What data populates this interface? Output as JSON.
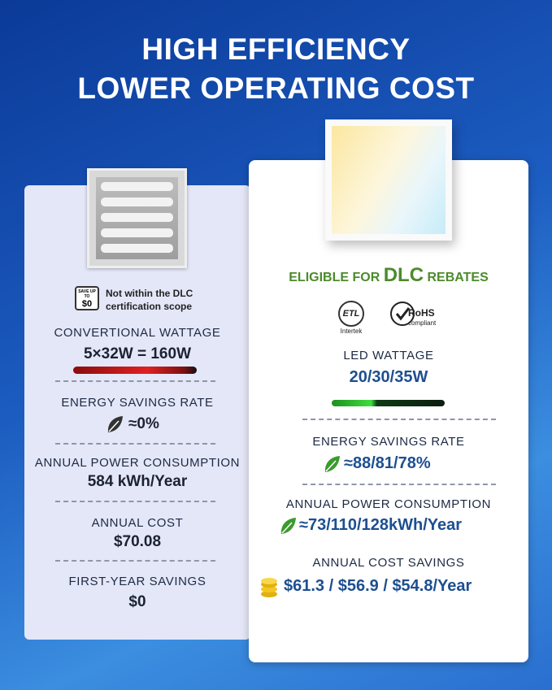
{
  "header": {
    "title_line1": "HIGH EFFICIENCY",
    "title_line2": "LOWER OPERATING COST"
  },
  "conventional": {
    "badge": {
      "top": "SAVE UP TO",
      "amount": "$0"
    },
    "note": [
      "Not within the DLC",
      "certification scope"
    ],
    "metrics": [
      {
        "label": "CONVERTIONAL WATTAGE",
        "value": "5×32W = 160W"
      },
      {
        "label": "ENERGY SAVINGS RATE",
        "value": "≈0%"
      },
      {
        "label": "ANNUAL POWER CONSUMPTION",
        "value": "584 kWh/Year"
      },
      {
        "label": "ANNUAL COST",
        "value": "$70.08"
      },
      {
        "label": "FIRST-YEAR SAVINGS",
        "value": "$0"
      }
    ]
  },
  "led": {
    "eligibility": {
      "prefix": "ELIGIBLE FOR",
      "emphasis": "DLC",
      "suffix": "REBATES"
    },
    "certifications": {
      "etl": "ETL",
      "etl_maker": "Intertek",
      "rohs": "RoHS",
      "rohs_note": "compliant"
    },
    "metrics": [
      {
        "label": "LED WATTAGE",
        "value": "20/30/35W"
      },
      {
        "label": "ENERGY SAVINGS RATE",
        "value": "≈88/81/78%"
      },
      {
        "label": "ANNUAL POWER CONSUMPTION",
        "value": "≈73/110/128kWh/Year"
      },
      {
        "label": "ANNUAL COST SAVINGS",
        "value": "$61.3 / $56.9 / $54.8/Year"
      }
    ]
  }
}
